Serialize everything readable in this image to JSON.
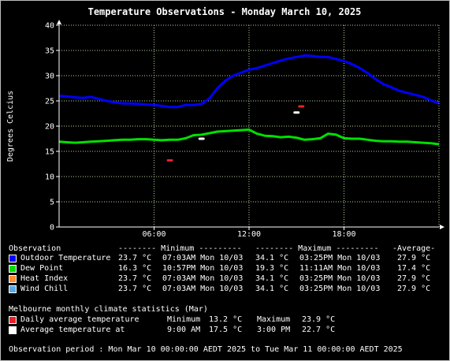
{
  "chart_data": {
    "type": "line",
    "title": "Temperature Observations - Monday March 10, 2025",
    "ylabel": "Degrees Celcius",
    "xlabel": "",
    "ylim": [
      0,
      40
    ],
    "yticks": [
      0,
      5,
      10,
      15,
      20,
      25,
      30,
      35,
      40
    ],
    "xlim_hours": [
      0,
      24
    ],
    "xticks": [
      {
        "hour": 6,
        "label": "06:00"
      },
      {
        "hour": 12,
        "label": "12:00"
      },
      {
        "hour": 18,
        "label": "18:00"
      }
    ],
    "grid": true,
    "colors": {
      "outdoor": "#0000ff",
      "dewpoint": "#00e000",
      "heatindex": "#ff8c2e",
      "windchill": "#5aa9e6",
      "daily_avg": "#e8202a",
      "avg_at": "#ffffff",
      "grid": "#b8d4a0",
      "axis": "#ffffff",
      "plot_bg": "#000000"
    },
    "series": [
      {
        "name": "Outdoor Temperature",
        "key": "outdoor",
        "hours": [
          0,
          0.5,
          1,
          1.5,
          2,
          2.5,
          3,
          3.5,
          4,
          4.5,
          5,
          5.5,
          6,
          6.5,
          7,
          7.5,
          8,
          8.5,
          9,
          9.5,
          10,
          10.5,
          11,
          11.5,
          12,
          12.5,
          13,
          13.5,
          14,
          14.5,
          15,
          15.5,
          16,
          16.5,
          17,
          17.5,
          18,
          18.5,
          19,
          19.5,
          20,
          20.5,
          21,
          21.5,
          22,
          22.5,
          23,
          23.5,
          24
        ],
        "values": [
          26.0,
          25.9,
          25.7,
          25.6,
          25.8,
          25.4,
          25.0,
          24.7,
          24.5,
          24.5,
          24.4,
          24.3,
          24.2,
          24.0,
          23.8,
          23.8,
          24.2,
          24.2,
          24.4,
          25.5,
          27.5,
          29.0,
          30.0,
          30.6,
          31.2,
          31.5,
          32.0,
          32.5,
          33.0,
          33.4,
          33.7,
          34.0,
          33.9,
          33.7,
          33.7,
          33.3,
          32.9,
          32.3,
          31.5,
          30.5,
          29.3,
          28.3,
          27.7,
          27.0,
          26.6,
          26.2,
          25.8,
          25.1,
          24.5
        ]
      },
      {
        "name": "Dew Point",
        "key": "dewpoint",
        "hours": [
          0,
          0.5,
          1,
          1.5,
          2,
          2.5,
          3,
          3.5,
          4,
          4.5,
          5,
          5.5,
          6,
          6.5,
          7,
          7.5,
          8,
          8.5,
          9,
          9.5,
          10,
          10.5,
          11,
          11.5,
          12,
          12.5,
          13,
          13.5,
          14,
          14.5,
          15,
          15.5,
          16,
          16.5,
          17,
          17.5,
          18,
          18.5,
          19,
          19.5,
          20,
          20.5,
          21,
          21.5,
          22,
          22.5,
          23,
          23.5,
          24
        ],
        "values": [
          16.9,
          16.8,
          16.7,
          16.8,
          16.9,
          17.0,
          17.1,
          17.2,
          17.3,
          17.3,
          17.4,
          17.4,
          17.3,
          17.2,
          17.3,
          17.3,
          17.6,
          18.2,
          18.3,
          18.6,
          18.9,
          19.0,
          19.1,
          19.2,
          19.3,
          18.5,
          18.1,
          18.0,
          17.8,
          17.9,
          17.7,
          17.3,
          17.4,
          17.6,
          18.5,
          18.3,
          17.6,
          17.5,
          17.5,
          17.3,
          17.1,
          17.0,
          17.0,
          16.9,
          16.9,
          16.8,
          16.7,
          16.6,
          16.4
        ]
      }
    ],
    "markers": [
      {
        "name": "Daily average temperature minimum",
        "key": "daily_avg",
        "hour": 7.0,
        "value": 13.2
      },
      {
        "name": "Daily average temperature maximum",
        "key": "daily_avg",
        "hour": 15.3,
        "value": 23.9
      },
      {
        "name": "Average temperature at 9:00 AM",
        "key": "avg_at",
        "hour": 9.0,
        "value": 17.5
      },
      {
        "name": "Average temperature at 3:00 PM",
        "key": "avg_at",
        "hour": 15.0,
        "value": 22.7
      }
    ]
  },
  "table": {
    "header": {
      "observation": "Observation",
      "minimum": "-------- Minimum ---------",
      "maximum": "-------- Maximum ---------",
      "average": "-Average-"
    },
    "rows": [
      {
        "key": "outdoor",
        "name": "Outdoor Temperature",
        "min": "23.7 °C",
        "min_time": "07:03AM Mon 10/03",
        "max": "34.1 °C",
        "max_time": "03:25PM Mon 10/03",
        "avg": "27.9 °C"
      },
      {
        "key": "dewpoint",
        "name": "Dew Point",
        "min": "16.3 °C",
        "min_time": "10:57PM Mon 10/03",
        "max": "19.3 °C",
        "max_time": "11:11AM Mon 10/03",
        "avg": "17.4 °C"
      },
      {
        "key": "heatindex",
        "name": "Heat Index",
        "min": "23.7 °C",
        "min_time": "07:03AM Mon 10/03",
        "max": "34.1 °C",
        "max_time": "03:25PM Mon 10/03",
        "avg": "27.9 °C"
      },
      {
        "key": "windchill",
        "name": "Wind Chill",
        "min": "23.7 °C",
        "min_time": "07:03AM Mon 10/03",
        "max": "34.1 °C",
        "max_time": "03:25PM Mon 10/03",
        "avg": "27.9 °C"
      }
    ]
  },
  "climate": {
    "heading": "Melbourne monthly climate statistics (Mar)",
    "daily": {
      "label": "Daily average temperature",
      "min_label": "Minimum",
      "min": "13.2 °C",
      "max_label": "Maximum",
      "max": "23.9 °C"
    },
    "at": {
      "label": "Average temperature at",
      "t1": "9:00 AM",
      "v1": "17.5 °C",
      "t2": "3:00 PM",
      "v2": "22.7 °C"
    }
  },
  "period": "Observation period : Mon Mar 10 00:00:00 AEDT 2025 to Tue Mar 11 00:00:00 AEDT 2025"
}
